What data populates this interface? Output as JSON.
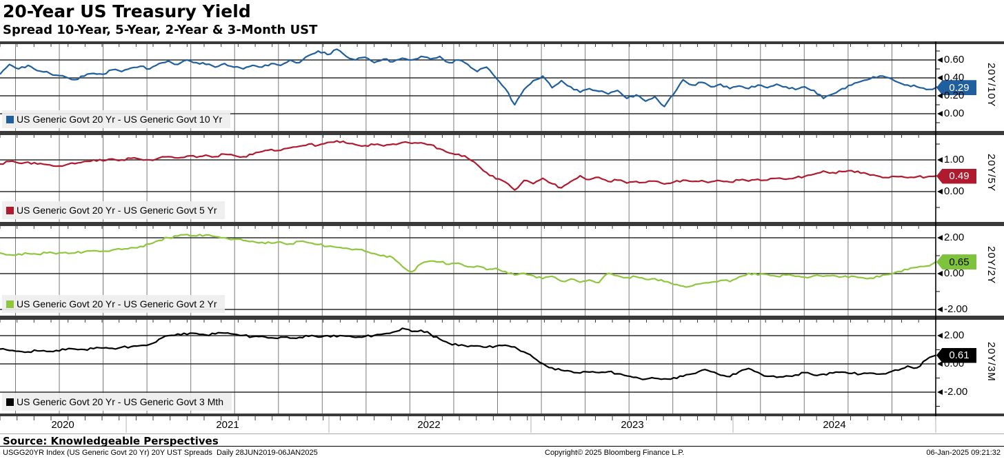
{
  "header": {
    "title": "20-Year US Treasury Yield",
    "subtitle": "Spread 10-Year, 5-Year, 2-Year & 3-Month UST"
  },
  "footer": {
    "source_label": "Source: Knowledgeable Perspectives",
    "index_note": "USGG20YR Index (US Generic Govt 20 Yr) 20Y UST Spreads  Daily 28JUN2019-06JAN2025",
    "copyright": "Copyright© 2025 Bloomberg Finance L.P.",
    "timestamp": "06-Jan-2025 09:21:32"
  },
  "chart_data": {
    "type": "line",
    "title": "20-Year US Treasury Yield",
    "subtitle": "Spread 10-Year, 5-Year, 2-Year & 3-Month UST",
    "x_range": "28JUN2019 - 06JAN2025",
    "x_note": "series values sampled at 101 evenly spaced points across the date range",
    "x_tick_years": [
      "2020",
      "2021",
      "2022",
      "2023",
      "2024"
    ],
    "grid": "on",
    "panels": [
      {
        "name": "20Y/10Y",
        "legend": "US Generic Govt 20 Yr - US Generic Govt 10 Yr",
        "color": "#1f5f9e",
        "last_value": "0.29",
        "badge_bg": "#1f5f9e",
        "badge_text": "#ffffff",
        "y_ticks": [
          "0.60",
          "0.40",
          "0.20",
          "0.00"
        ],
        "y_range": [
          -0.19,
          0.78
        ],
        "values": [
          0.44,
          0.55,
          0.5,
          0.54,
          0.48,
          0.47,
          0.43,
          0.41,
          0.38,
          0.42,
          0.45,
          0.44,
          0.49,
          0.47,
          0.51,
          0.53,
          0.5,
          0.56,
          0.59,
          0.55,
          0.6,
          0.57,
          0.55,
          0.52,
          0.56,
          0.52,
          0.5,
          0.54,
          0.52,
          0.56,
          0.54,
          0.6,
          0.57,
          0.65,
          0.7,
          0.66,
          0.72,
          0.64,
          0.6,
          0.63,
          0.57,
          0.61,
          0.58,
          0.62,
          0.6,
          0.64,
          0.61,
          0.64,
          0.57,
          0.6,
          0.55,
          0.47,
          0.52,
          0.4,
          0.28,
          0.1,
          0.27,
          0.37,
          0.42,
          0.29,
          0.37,
          0.3,
          0.24,
          0.28,
          0.25,
          0.22,
          0.26,
          0.17,
          0.21,
          0.14,
          0.19,
          0.08,
          0.22,
          0.38,
          0.32,
          0.35,
          0.3,
          0.33,
          0.28,
          0.31,
          0.28,
          0.32,
          0.29,
          0.33,
          0.3,
          0.27,
          0.3,
          0.26,
          0.17,
          0.22,
          0.28,
          0.32,
          0.36,
          0.39,
          0.42,
          0.4,
          0.35,
          0.32,
          0.3,
          0.27,
          0.29
        ]
      },
      {
        "name": "20Y/5Y",
        "legend": "US Generic Govt 20 Yr - US Generic Govt 5 Yr",
        "color": "#b01a2e",
        "last_value": "0.49",
        "badge_bg": "#b01a2e",
        "badge_text": "#ffffff",
        "y_ticks": [
          "1.00",
          "0.00"
        ],
        "y_range": [
          -0.96,
          1.78
        ],
        "values": [
          0.87,
          0.95,
          0.9,
          0.93,
          0.87,
          0.85,
          0.8,
          0.84,
          0.88,
          0.95,
          1.0,
          0.97,
          1.03,
          1.0,
          1.05,
          1.02,
          1.0,
          1.06,
          1.1,
          1.06,
          1.12,
          1.08,
          1.15,
          1.1,
          1.18,
          1.14,
          1.1,
          1.17,
          1.26,
          1.33,
          1.3,
          1.38,
          1.43,
          1.5,
          1.46,
          1.55,
          1.6,
          1.53,
          1.48,
          1.45,
          1.48,
          1.44,
          1.5,
          1.55,
          1.52,
          1.54,
          1.48,
          1.35,
          1.22,
          1.18,
          1.05,
          0.85,
          0.6,
          0.4,
          0.3,
          0.05,
          0.35,
          0.25,
          0.42,
          0.25,
          0.12,
          0.32,
          0.5,
          0.38,
          0.45,
          0.32,
          0.36,
          0.27,
          0.32,
          0.29,
          0.33,
          0.24,
          0.3,
          0.36,
          0.32,
          0.35,
          0.31,
          0.34,
          0.3,
          0.36,
          0.33,
          0.39,
          0.36,
          0.42,
          0.39,
          0.44,
          0.48,
          0.55,
          0.65,
          0.6,
          0.63,
          0.66,
          0.58,
          0.52,
          0.48,
          0.44,
          0.47,
          0.44,
          0.47,
          0.46,
          0.49
        ]
      },
      {
        "name": "20Y/2Y",
        "legend": "US Generic Govt 20 Yr - US Generic Govt 2 Yr",
        "color": "#8fc63d",
        "last_value": "0.65",
        "badge_bg": "#7dc33c",
        "badge_text": "#000000",
        "y_ticks": [
          "2.00",
          "0.00",
          "-2.00"
        ],
        "y_range": [
          -2.35,
          2.65
        ],
        "values": [
          1.15,
          1.05,
          1.1,
          1.12,
          1.08,
          1.15,
          1.1,
          1.18,
          1.15,
          1.22,
          1.28,
          1.25,
          1.32,
          1.35,
          1.45,
          1.52,
          1.65,
          1.85,
          2.0,
          2.1,
          2.18,
          2.1,
          2.16,
          2.06,
          2.0,
          1.92,
          1.85,
          1.8,
          1.75,
          1.7,
          1.76,
          1.66,
          1.8,
          1.72,
          1.62,
          1.52,
          1.47,
          1.42,
          1.36,
          1.25,
          1.12,
          1.02,
          0.88,
          0.4,
          0.1,
          0.55,
          0.7,
          0.65,
          0.52,
          0.58,
          0.38,
          0.42,
          0.22,
          0.3,
          0.12,
          -0.08,
          0.02,
          -0.12,
          -0.28,
          -0.15,
          -0.42,
          -0.3,
          -0.48,
          -0.35,
          -0.5,
          0.02,
          -0.12,
          -0.22,
          -0.18,
          -0.32,
          -0.28,
          -0.45,
          -0.6,
          -0.7,
          -0.68,
          -0.55,
          -0.48,
          -0.38,
          -0.45,
          -0.18,
          0.02,
          -0.08,
          -0.05,
          -0.15,
          -0.08,
          -0.15,
          -0.2,
          -0.12,
          -0.15,
          -0.1,
          -0.18,
          -0.14,
          -0.22,
          -0.25,
          -0.18,
          -0.05,
          0.12,
          0.22,
          0.35,
          0.42,
          0.65
        ]
      },
      {
        "name": "20Y/3M",
        "legend": "US Generic Govt 20 Yr - US Generic Govt 3 Mth",
        "color": "#000000",
        "last_value": "0.61",
        "badge_bg": "#000000",
        "badge_text": "#ffffff",
        "y_ticks": [
          "2.00",
          "0.00",
          "-2.00"
        ],
        "y_range": [
          -3.5,
          3.1
        ],
        "values": [
          1.05,
          0.95,
          0.9,
          0.85,
          0.92,
          0.88,
          0.95,
          1.0,
          1.05,
          1.02,
          1.08,
          1.12,
          1.1,
          1.18,
          1.22,
          1.3,
          1.38,
          1.75,
          2.0,
          2.12,
          2.08,
          2.15,
          2.05,
          2.12,
          2.18,
          2.1,
          2.02,
          1.92,
          1.95,
          1.85,
          1.9,
          1.82,
          1.88,
          1.95,
          1.9,
          2.0,
          1.92,
          1.96,
          1.88,
          1.94,
          2.02,
          2.12,
          2.25,
          2.52,
          2.3,
          2.38,
          2.1,
          1.75,
          1.45,
          1.3,
          1.22,
          1.28,
          1.18,
          1.26,
          1.32,
          1.2,
          0.85,
          0.45,
          0.02,
          -0.28,
          -0.45,
          -0.52,
          -0.65,
          -0.58,
          -0.62,
          -0.55,
          -0.7,
          -0.85,
          -0.95,
          -1.08,
          -1.02,
          -1.06,
          -0.98,
          -0.88,
          -0.7,
          -0.45,
          -0.55,
          -0.8,
          -0.9,
          -0.55,
          -0.32,
          -0.6,
          -0.88,
          -0.95,
          -0.85,
          -0.78,
          -0.62,
          -0.8,
          -0.72,
          -0.65,
          -0.58,
          -0.68,
          -0.72,
          -0.65,
          -0.72,
          -0.6,
          -0.45,
          -0.15,
          -0.28,
          0.3,
          0.61
        ]
      }
    ]
  }
}
